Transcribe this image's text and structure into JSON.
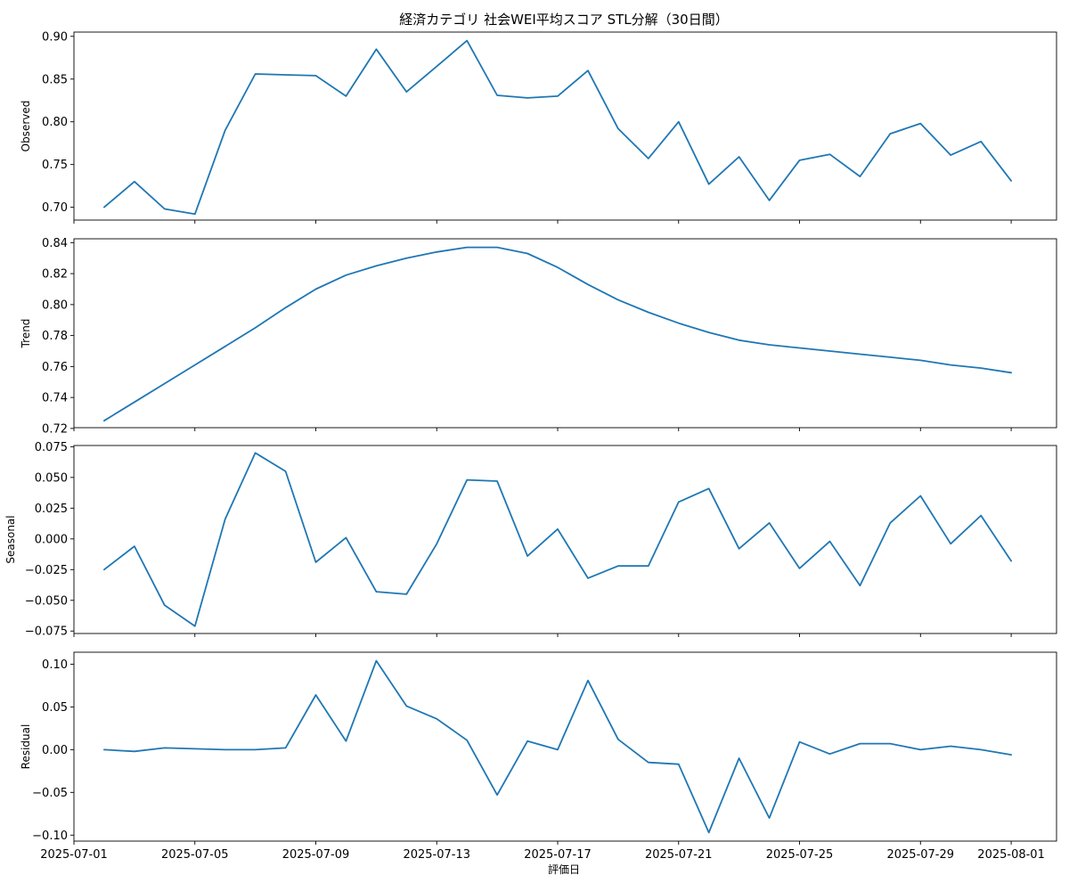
{
  "chart_data": {
    "type": "line",
    "title": "経済カテゴリ 社会WEI平均スコア STL分解（30日間）",
    "xlabel": "評価日",
    "x": [
      "2025-07-02",
      "2025-07-03",
      "2025-07-04",
      "2025-07-05",
      "2025-07-06",
      "2025-07-07",
      "2025-07-08",
      "2025-07-09",
      "2025-07-10",
      "2025-07-11",
      "2025-07-12",
      "2025-07-13",
      "2025-07-14",
      "2025-07-15",
      "2025-07-16",
      "2025-07-17",
      "2025-07-18",
      "2025-07-19",
      "2025-07-20",
      "2025-07-21",
      "2025-07-22",
      "2025-07-23",
      "2025-07-24",
      "2025-07-25",
      "2025-07-26",
      "2025-07-27",
      "2025-07-28",
      "2025-07-29",
      "2025-07-30",
      "2025-07-31",
      "2025-08-01"
    ],
    "xlim": [
      "2025-07-01T00:00",
      "2025-08-02T12:00"
    ],
    "xticks": [
      "2025-07-01",
      "2025-07-05",
      "2025-07-09",
      "2025-07-13",
      "2025-07-17",
      "2025-07-21",
      "2025-07-25",
      "2025-07-29",
      "2025-08-01"
    ],
    "line_color": "#1f77b4",
    "grid": false,
    "shared_x": true,
    "panels": [
      {
        "ylabel": "Observed",
        "ylim": [
          0.685,
          0.905
        ],
        "yticks": [
          "0.70",
          "0.75",
          "0.80",
          "0.85",
          "0.90"
        ],
        "values": [
          0.7,
          0.73,
          0.698,
          0.692,
          0.79,
          0.856,
          0.855,
          0.854,
          0.83,
          0.885,
          0.835,
          0.865,
          0.895,
          0.831,
          0.828,
          0.83,
          0.86,
          0.792,
          0.757,
          0.8,
          0.727,
          0.759,
          0.708,
          0.755,
          0.762,
          0.736,
          0.786,
          0.798,
          0.761,
          0.777,
          0.731
        ]
      },
      {
        "ylabel": "Trend",
        "ylim": [
          0.7205,
          0.8425
        ],
        "yticks": [
          "0.72",
          "0.74",
          "0.76",
          "0.78",
          "0.80",
          "0.82",
          "0.84"
        ],
        "values": [
          0.725,
          0.737,
          0.749,
          0.761,
          0.773,
          0.785,
          0.798,
          0.81,
          0.819,
          0.825,
          0.83,
          0.834,
          0.837,
          0.837,
          0.833,
          0.824,
          0.813,
          0.803,
          0.795,
          0.788,
          0.782,
          0.777,
          0.774,
          0.772,
          0.77,
          0.768,
          0.766,
          0.764,
          0.761,
          0.759,
          0.756
        ]
      },
      {
        "ylabel": "Seasonal",
        "ylim": [
          -0.077,
          0.076
        ],
        "yticks": [
          "−0.075",
          "−0.050",
          "−0.025",
          "0.000",
          "0.025",
          "0.050",
          "0.075"
        ],
        "values": [
          -0.025,
          -0.006,
          -0.054,
          -0.071,
          0.016,
          0.07,
          0.055,
          -0.019,
          0.001,
          -0.043,
          -0.045,
          -0.004,
          0.048,
          0.047,
          -0.014,
          0.008,
          -0.032,
          -0.022,
          -0.022,
          0.03,
          0.041,
          -0.008,
          0.013,
          -0.024,
          -0.002,
          -0.038,
          0.013,
          0.035,
          -0.004,
          0.019,
          -0.018
        ]
      },
      {
        "ylabel": "Residual",
        "ylim": [
          -0.107,
          0.114
        ],
        "yticks": [
          "−0.10",
          "−0.05",
          "0.00",
          "0.05",
          "0.10"
        ],
        "values": [
          0.0,
          -0.002,
          0.002,
          0.001,
          0.0,
          0.0,
          0.002,
          0.064,
          0.01,
          0.104,
          0.051,
          0.036,
          0.011,
          -0.053,
          0.01,
          0.0,
          0.081,
          0.012,
          -0.015,
          -0.017,
          -0.097,
          -0.01,
          -0.08,
          0.009,
          -0.005,
          0.007,
          0.007,
          0.0,
          0.004,
          0.0,
          -0.006
        ]
      }
    ]
  }
}
